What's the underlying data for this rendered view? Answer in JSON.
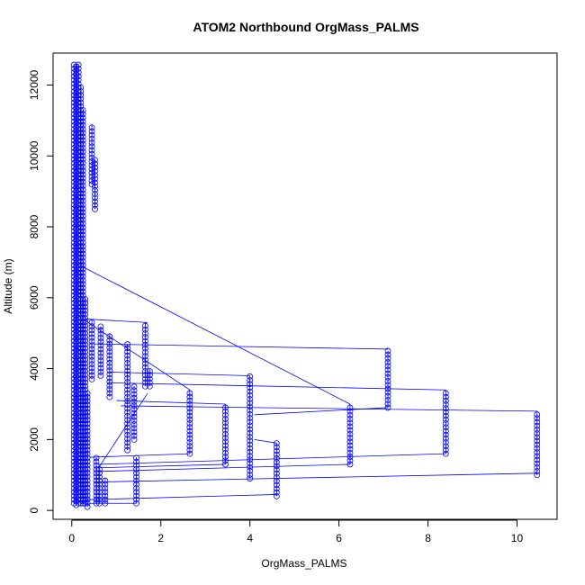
{
  "chart_data": {
    "type": "scatter",
    "title": "ATOM2 Northbound OrgMass_PALMS",
    "xlabel": "OrgMass_PALMS",
    "ylabel": "Altitude (m)",
    "xlim": [
      -0.42,
      10.9
    ],
    "ylim": [
      -250,
      12900
    ],
    "xticks": [
      0,
      2,
      4,
      6,
      8,
      10
    ],
    "xtick_labels": [
      "0",
      "2",
      "4",
      "6",
      "8",
      "10"
    ],
    "yticks": [
      0,
      2000,
      4000,
      6000,
      8000,
      10000,
      12000
    ],
    "ytick_labels": [
      "0",
      "2000",
      "4000",
      "6000",
      "8000",
      "10000",
      "12000"
    ],
    "series": [
      {
        "color": "#0000ff",
        "marker": "open-circle",
        "connected": true,
        "columns": [
          {
            "x": 0.05,
            "y": [
              200,
              12600
            ]
          },
          {
            "x": 0.1,
            "y": [
              150,
              12600
            ]
          },
          {
            "x": 0.15,
            "y": [
              200,
              12600
            ]
          },
          {
            "x": 0.2,
            "y": [
              200,
              12000
            ]
          },
          {
            "x": 0.25,
            "y": [
              200,
              11300
            ]
          },
          {
            "x": 0.3,
            "y": [
              200,
              6000
            ]
          },
          {
            "x": 0.35,
            "y": [
              100,
              3300
            ]
          },
          {
            "x": 0.45,
            "y": [
              9200,
              10900
            ]
          },
          {
            "x": 0.52,
            "y": [
              8500,
              9900
            ]
          },
          {
            "x": 0.45,
            "y": [
              3700,
              5400
            ]
          },
          {
            "x": 0.55,
            "y": [
              200,
              1500
            ]
          },
          {
            "x": 0.62,
            "y": [
              200,
              1200
            ]
          },
          {
            "x": 0.65,
            "y": [
              3800,
              5200
            ]
          },
          {
            "x": 0.75,
            "y": [
              200,
              900
            ]
          },
          {
            "x": 0.85,
            "y": [
              3200,
              5000
            ]
          },
          {
            "x": 1.25,
            "y": [
              1700,
              4700
            ]
          },
          {
            "x": 1.4,
            "y": [
              2000,
              3500
            ]
          },
          {
            "x": 1.45,
            "y": [
              200,
              1500
            ]
          },
          {
            "x": 1.65,
            "y": [
              3500,
              5300
            ]
          },
          {
            "x": 1.75,
            "y": [
              3500,
              4000
            ]
          },
          {
            "x": 2.65,
            "y": [
              1600,
              3400
            ]
          },
          {
            "x": 3.45,
            "y": [
              1300,
              3000
            ]
          },
          {
            "x": 4.0,
            "y": [
              900,
              3800
            ]
          },
          {
            "x": 4.6,
            "y": [
              400,
              1900
            ]
          },
          {
            "x": 6.25,
            "y": [
              1300,
              3000
            ]
          },
          {
            "x": 7.1,
            "y": [
              2900,
              4500
            ]
          },
          {
            "x": 8.4,
            "y": [
              1600,
              3400
            ]
          },
          {
            "x": 10.45,
            "y": [
              1000,
              2800
            ]
          }
        ],
        "connectors": [
          {
            "from": [
              1.7,
              5300
            ],
            "to": [
              0.3,
              5400
            ]
          },
          {
            "from": [
              7.1,
              4550
            ],
            "to": [
              0.4,
              4700
            ]
          },
          {
            "from": [
              8.4,
              3400
            ],
            "to": [
              0.8,
              3600
            ]
          },
          {
            "from": [
              10.45,
              2800
            ],
            "to": [
              1.1,
              2950
            ]
          },
          {
            "from": [
              6.25,
              3000
            ],
            "to": [
              0.2,
              6900
            ]
          },
          {
            "from": [
              7.1,
              2900
            ],
            "to": [
              4.1,
              2700
            ]
          },
          {
            "from": [
              3.45,
              3000
            ],
            "to": [
              1.0,
              3100
            ]
          },
          {
            "from": [
              2.65,
              3400
            ],
            "to": [
              0.25,
              5400
            ]
          },
          {
            "from": [
              4.0,
              3800
            ],
            "to": [
              0.85,
              3900
            ]
          },
          {
            "from": [
              4.6,
              1900
            ],
            "to": [
              4.1,
              2000
            ]
          },
          {
            "from": [
              8.4,
              1600
            ],
            "to": [
              0.6,
              1300
            ]
          },
          {
            "from": [
              10.45,
              1050
            ],
            "to": [
              0.5,
              800
            ]
          },
          {
            "from": [
              6.25,
              1300
            ],
            "to": [
              0.6,
              1100
            ]
          },
          {
            "from": [
              2.65,
              1600
            ],
            "to": [
              0.4,
              1500
            ]
          },
          {
            "from": [
              3.45,
              1300
            ],
            "to": [
              0.5,
              1200
            ]
          },
          {
            "from": [
              4.6,
              450
            ],
            "to": [
              0.3,
              300
            ]
          },
          {
            "from": [
              1.7,
              3300
            ],
            "to": [
              0.6,
              1200
            ]
          },
          {
            "from": [
              1.45,
              200
            ],
            "to": [
              0.2,
              200
            ]
          }
        ]
      }
    ]
  }
}
